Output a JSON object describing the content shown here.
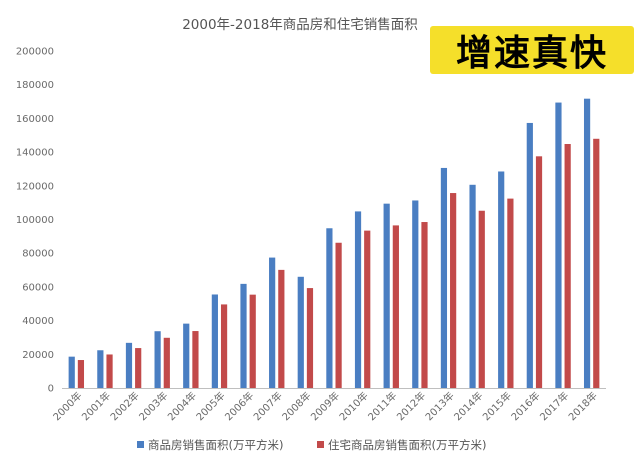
{
  "colors": {
    "series_1": "#4a7ec2",
    "series_2": "#c24a4a",
    "badge_bg": "#f5df2a",
    "badge_text": "#000000"
  },
  "badge": {
    "text": "增速真快"
  },
  "chart_data": {
    "type": "bar",
    "title": "2000年-2018年商品房和住宅销售面积",
    "xlabel": "",
    "ylabel": "",
    "ylim": [
      0,
      200000
    ],
    "yticks": [
      "0",
      "20000",
      "40000",
      "60000",
      "80000",
      "100000",
      "120000",
      "140000",
      "160000",
      "180000",
      "200000"
    ],
    "grid": false,
    "legend_position": "bottom",
    "categories": [
      "2000年",
      "2001年",
      "2002年",
      "2003年",
      "2004年",
      "2005年",
      "2006年",
      "2007年",
      "2008年",
      "2009年",
      "2010年",
      "2011年",
      "2012年",
      "2013年",
      "2014年",
      "2015年",
      "2016年",
      "2017年",
      "2018年"
    ],
    "series": [
      {
        "name": "商品房销售面积(万平方米)",
        "values": [
          18600,
          22400,
          26800,
          33700,
          38200,
          55500,
          61800,
          77400,
          66000,
          94800,
          104800,
          109400,
          111300,
          130600,
          120600,
          128500,
          157300,
          169400,
          171700
        ]
      },
      {
        "name": "住宅商品房销售面积(万平方米)",
        "values": [
          16600,
          19900,
          23700,
          29800,
          33800,
          49600,
          55400,
          70100,
          59300,
          86200,
          93400,
          96500,
          98500,
          115700,
          105200,
          112400,
          137500,
          144800,
          147900
        ]
      }
    ]
  }
}
